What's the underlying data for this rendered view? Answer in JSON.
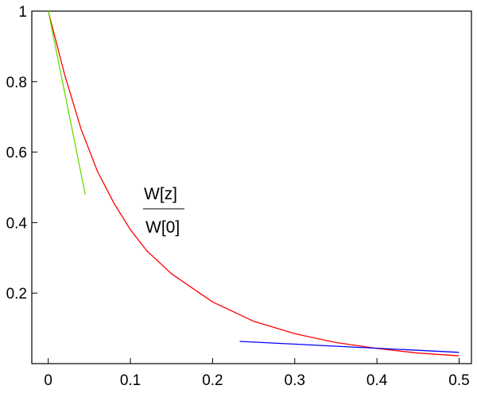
{
  "chart_data": {
    "type": "line",
    "title": "",
    "xlabel": "",
    "ylabel": "",
    "xlim": [
      -0.02,
      0.515
    ],
    "ylim": [
      0.0,
      1.0
    ],
    "x_ticks": [
      0,
      0.1,
      0.2,
      0.3,
      0.4,
      0.5
    ],
    "x_tick_labels": [
      "0",
      "0.1",
      "0.2",
      "0.3",
      "0.4",
      "0.5"
    ],
    "y_ticks": [
      0.2,
      0.4,
      0.6,
      0.8,
      1.0
    ],
    "y_tick_labels": [
      "0.2",
      "0.4",
      "0.6",
      "0.8",
      "1"
    ],
    "grid": false,
    "annotation": {
      "numerator": "W[z]",
      "denominator": "W[0]"
    },
    "series": [
      {
        "color": "#ff0000",
        "x": [
          0,
          0.02,
          0.04,
          0.06,
          0.08,
          0.1,
          0.12,
          0.15,
          0.2,
          0.25,
          0.3,
          0.35,
          0.4,
          0.45,
          0.5
        ],
        "y": [
          1.0,
          0.82,
          0.665,
          0.545,
          0.455,
          0.38,
          0.32,
          0.255,
          0.175,
          0.12,
          0.085,
          0.06,
          0.043,
          0.03,
          0.022
        ]
      },
      {
        "color": "#66dd00",
        "x": [
          0,
          0.045
        ],
        "y": [
          1.0,
          0.48
        ]
      },
      {
        "color": "#0000ff",
        "x": [
          0.233,
          0.5
        ],
        "y": [
          0.063,
          0.032
        ]
      }
    ]
  }
}
